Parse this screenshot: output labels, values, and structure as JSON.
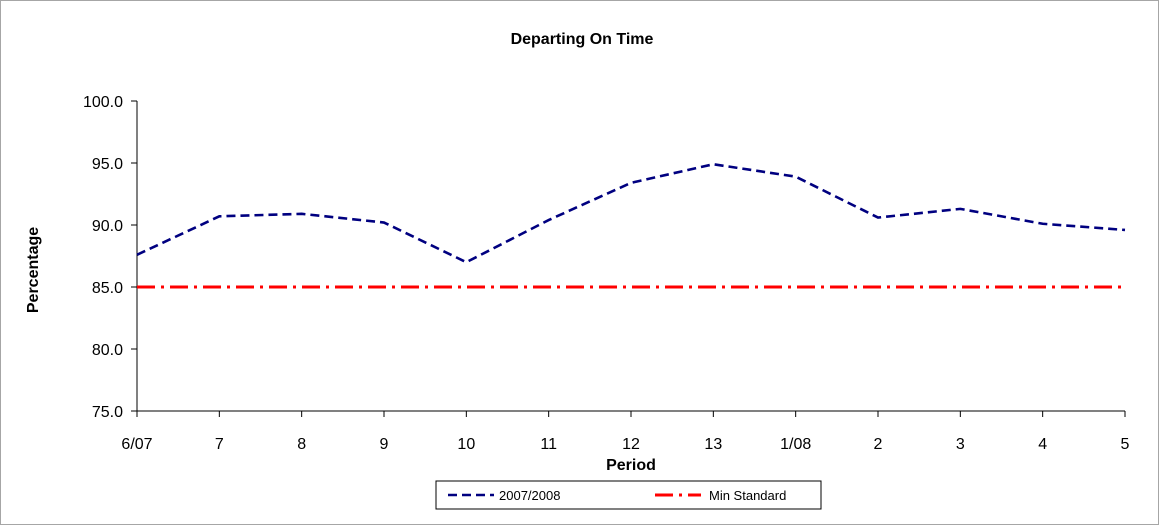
{
  "chart_data": {
    "type": "line",
    "title": "Departing On Time",
    "xlabel": "Period",
    "ylabel": "Percentage",
    "categories": [
      "6/07",
      "7",
      "8",
      "9",
      "10",
      "11",
      "12",
      "13",
      "1/08",
      "2",
      "3",
      "4",
      "5"
    ],
    "ylim": [
      75.0,
      100.0
    ],
    "yticks": [
      "75.0",
      "80.0",
      "85.0",
      "90.0",
      "95.0",
      "100.0"
    ],
    "grid": false,
    "legend": "bottom",
    "series": [
      {
        "name": "2007/2008",
        "color": "#000080",
        "style": "dashed",
        "values": [
          87.6,
          90.7,
          90.9,
          90.2,
          87.0,
          90.4,
          93.4,
          94.9,
          93.9,
          90.6,
          91.3,
          90.1,
          89.6
        ]
      },
      {
        "name": "Min Standard",
        "color": "#ff0000",
        "style": "dash-dot",
        "values": [
          85.0,
          85.0,
          85.0,
          85.0,
          85.0,
          85.0,
          85.0,
          85.0,
          85.0,
          85.0,
          85.0,
          85.0,
          85.0
        ]
      }
    ]
  }
}
